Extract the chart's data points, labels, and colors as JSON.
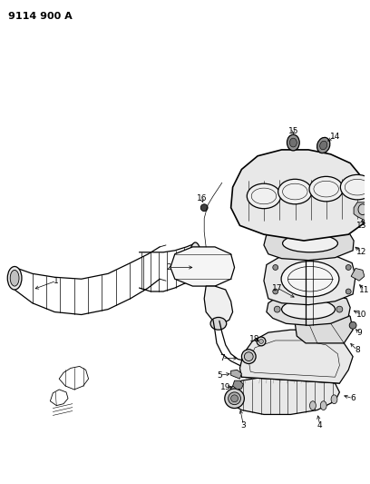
{
  "title": "9114 900 A",
  "bg_color": "#ffffff",
  "line_color": "#000000",
  "fig_width": 4.08,
  "fig_height": 5.33,
  "dpi": 100
}
